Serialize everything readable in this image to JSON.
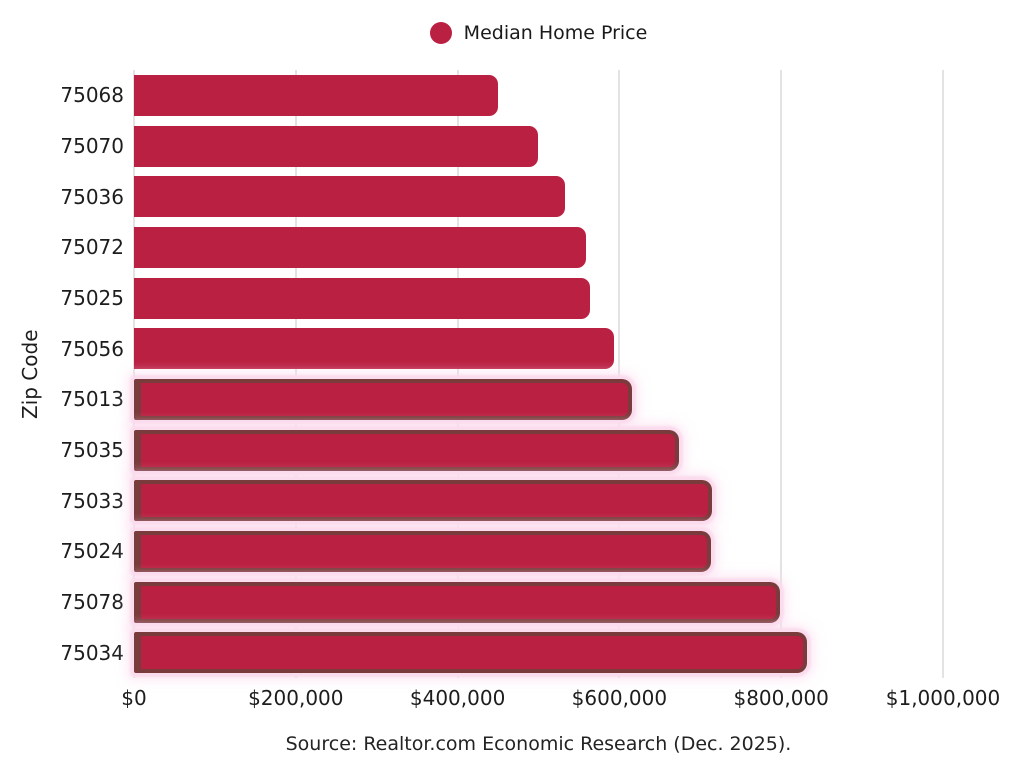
{
  "legend": {
    "label": "Median Home Price",
    "marker_color": "#ba2042"
  },
  "axes": {
    "y_title": "Zip Code",
    "x_ticks": [
      {
        "label": "$0",
        "value": 0
      },
      {
        "label": "$200,000",
        "value": 200000
      },
      {
        "label": "$400,000",
        "value": 400000
      },
      {
        "label": "$600,000",
        "value": 600000
      },
      {
        "label": "$800,000",
        "value": 800000
      },
      {
        "label": "$1,000,000",
        "value": 1000000
      }
    ]
  },
  "source_note": "Source: Realtor.com Economic Research (Dec. 2025).",
  "colors": {
    "bar_fill": "#ba2042",
    "bar_border": "#7a3b3c",
    "bar_glow": "#fbdcee",
    "gridline": "#e3e3e3"
  },
  "chart_data": {
    "type": "bar",
    "orientation": "horizontal",
    "title": "",
    "xlabel": "",
    "ylabel": "Zip Code",
    "legend_position": "top-center",
    "grid": "vertical",
    "xlim": [
      0,
      1000000
    ],
    "categories": [
      "75068",
      "75070",
      "75036",
      "75072",
      "75025",
      "75056",
      "75013",
      "75035",
      "75033",
      "75024",
      "75078",
      "75034"
    ],
    "series": [
      {
        "name": "Median Home Price",
        "values": [
          450000,
          499000,
          533000,
          559000,
          564000,
          593000,
          615000,
          674000,
          714000,
          713000,
          798000,
          832000
        ]
      }
    ],
    "emphasized_bars": [
      false,
      false,
      false,
      false,
      false,
      false,
      true,
      true,
      true,
      true,
      true,
      true
    ]
  }
}
